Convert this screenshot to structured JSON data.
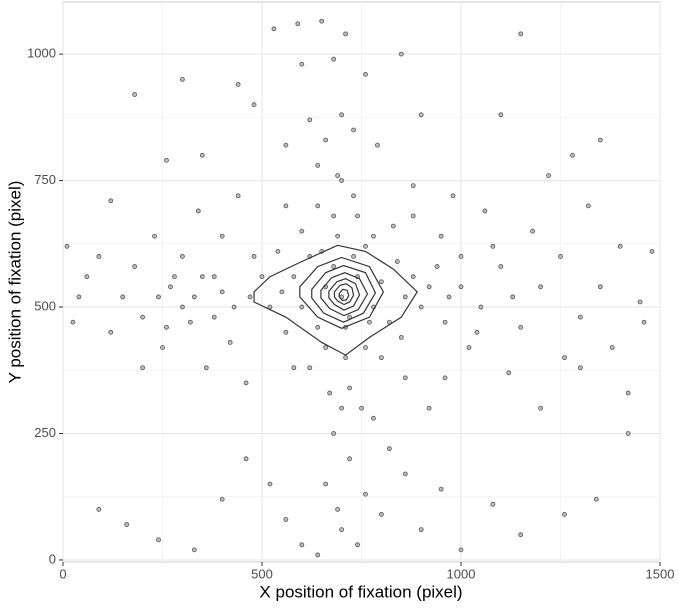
{
  "chart_data": {
    "type": "scatter",
    "xlabel": "X position of fixation (pixel)",
    "ylabel": "Y position of fixation (pixel)",
    "xlim": [
      0,
      1500
    ],
    "ylim": [
      -4,
      1103
    ],
    "xticks": [
      0,
      500,
      1000,
      1500
    ],
    "yticks": [
      0,
      250,
      500,
      750,
      1000
    ],
    "grid": true,
    "point_color": "#bdbdbd",
    "point_edge": "#555555",
    "contour_color": "#333333",
    "x": [
      10,
      40,
      25,
      60,
      90,
      120,
      150,
      180,
      200,
      230,
      250,
      270,
      300,
      320,
      340,
      360,
      380,
      400,
      420,
      440,
      460,
      480,
      120,
      200,
      180,
      90,
      160,
      240,
      330,
      400,
      460,
      520,
      560,
      600,
      640,
      660,
      680,
      690,
      700,
      720,
      740,
      760,
      780,
      800,
      820,
      860,
      900,
      950,
      1000,
      1080,
      1150,
      1260,
      1340,
      530,
      590,
      650,
      710,
      680,
      600,
      760,
      850,
      440,
      480,
      620,
      700,
      660,
      730,
      790,
      560,
      900,
      1100,
      1150,
      300,
      260,
      350,
      1280,
      1350,
      1220,
      1000,
      1050,
      1100,
      1150,
      1200,
      1250,
      1300,
      1350,
      1400,
      1450,
      1480,
      1420,
      1420,
      1380,
      1320,
      1260,
      1180,
      1120,
      1060,
      980,
      960,
      920,
      880,
      1020,
      1080,
      1200,
      1300,
      1460,
      550,
      580,
      600,
      620,
      640,
      660,
      680,
      700,
      720,
      740,
      760,
      780,
      800,
      820,
      840,
      860,
      880,
      900,
      920,
      940,
      960,
      500,
      520,
      540,
      560,
      600,
      640,
      660,
      680,
      700,
      710,
      720,
      740,
      760,
      780,
      800,
      830,
      850,
      700,
      690,
      670,
      730,
      750,
      620,
      640,
      690,
      710,
      730,
      650,
      770,
      470,
      430,
      400,
      380,
      350,
      330,
      300,
      280,
      260,
      240,
      1000,
      1040,
      970,
      950,
      1130,
      560,
      860,
      580,
      880
    ],
    "y": [
      620,
      520,
      470,
      560,
      600,
      450,
      520,
      580,
      480,
      640,
      420,
      540,
      600,
      470,
      690,
      380,
      560,
      640,
      430,
      720,
      350,
      600,
      710,
      380,
      920,
      100,
      70,
      40,
      20,
      120,
      200,
      150,
      80,
      30,
      10,
      150,
      250,
      100,
      60,
      200,
      30,
      130,
      280,
      90,
      220,
      170,
      60,
      140,
      20,
      110,
      50,
      90,
      120,
      1050,
      1060,
      1065,
      1040,
      990,
      980,
      960,
      1000,
      940,
      900,
      870,
      880,
      830,
      850,
      820,
      820,
      880,
      880,
      1040,
      950,
      790,
      800,
      800,
      830,
      760,
      540,
      500,
      580,
      460,
      540,
      600,
      480,
      540,
      620,
      510,
      610,
      330,
      250,
      420,
      700,
      400,
      650,
      370,
      690,
      720,
      360,
      300,
      740,
      420,
      620,
      300,
      380,
      470,
      530,
      560,
      500,
      600,
      460,
      540,
      580,
      520,
      480,
      560,
      620,
      500,
      550,
      470,
      590,
      520,
      560,
      500,
      540,
      580,
      470,
      560,
      500,
      610,
      450,
      650,
      700,
      420,
      680,
      750,
      400,
      340,
      680,
      420,
      640,
      400,
      660,
      440,
      300,
      760,
      330,
      720,
      300,
      380,
      780,
      640,
      460,
      600,
      610,
      470,
      520,
      500,
      530,
      480,
      560,
      520,
      500,
      560,
      460,
      520,
      600,
      450,
      520,
      640,
      520,
      700,
      360,
      380,
      680
    ],
    "contours": [
      {
        "x": [
          480,
          520,
          600,
          690,
          760,
          830,
          890,
          850,
          770,
          710,
          650,
          560,
          480
        ],
        "y": [
          530,
          560,
          590,
          622,
          610,
          575,
          530,
          480,
          440,
          405,
          430,
          480,
          510
        ]
      },
      {
        "x": [
          595,
          640,
          700,
          770,
          805,
          770,
          700,
          640,
          595
        ],
        "y": [
          540,
          580,
          598,
          580,
          530,
          480,
          458,
          480,
          520
        ]
      },
      {
        "x": [
          625,
          660,
          705,
          760,
          785,
          755,
          705,
          655,
          625
        ],
        "y": [
          535,
          568,
          582,
          568,
          528,
          488,
          470,
          488,
          518
        ]
      },
      {
        "x": [
          648,
          675,
          708,
          745,
          765,
          742,
          706,
          670,
          648
        ],
        "y": [
          533,
          558,
          568,
          556,
          526,
          495,
          483,
          497,
          518
        ]
      },
      {
        "x": [
          668,
          688,
          710,
          735,
          745,
          730,
          706,
          682,
          668
        ],
        "y": [
          531,
          550,
          556,
          546,
          524,
          502,
          494,
          505,
          518
        ]
      },
      {
        "x": [
          682,
          696,
          712,
          726,
          730,
          720,
          706,
          690,
          682
        ],
        "y": [
          530,
          543,
          546,
          538,
          523,
          510,
          505,
          512,
          520
        ]
      },
      {
        "x": [
          694,
          703,
          714,
          718,
          712,
          702,
          694
        ],
        "y": [
          527,
          535,
          533,
          523,
          514,
          513,
          520
        ]
      }
    ]
  }
}
